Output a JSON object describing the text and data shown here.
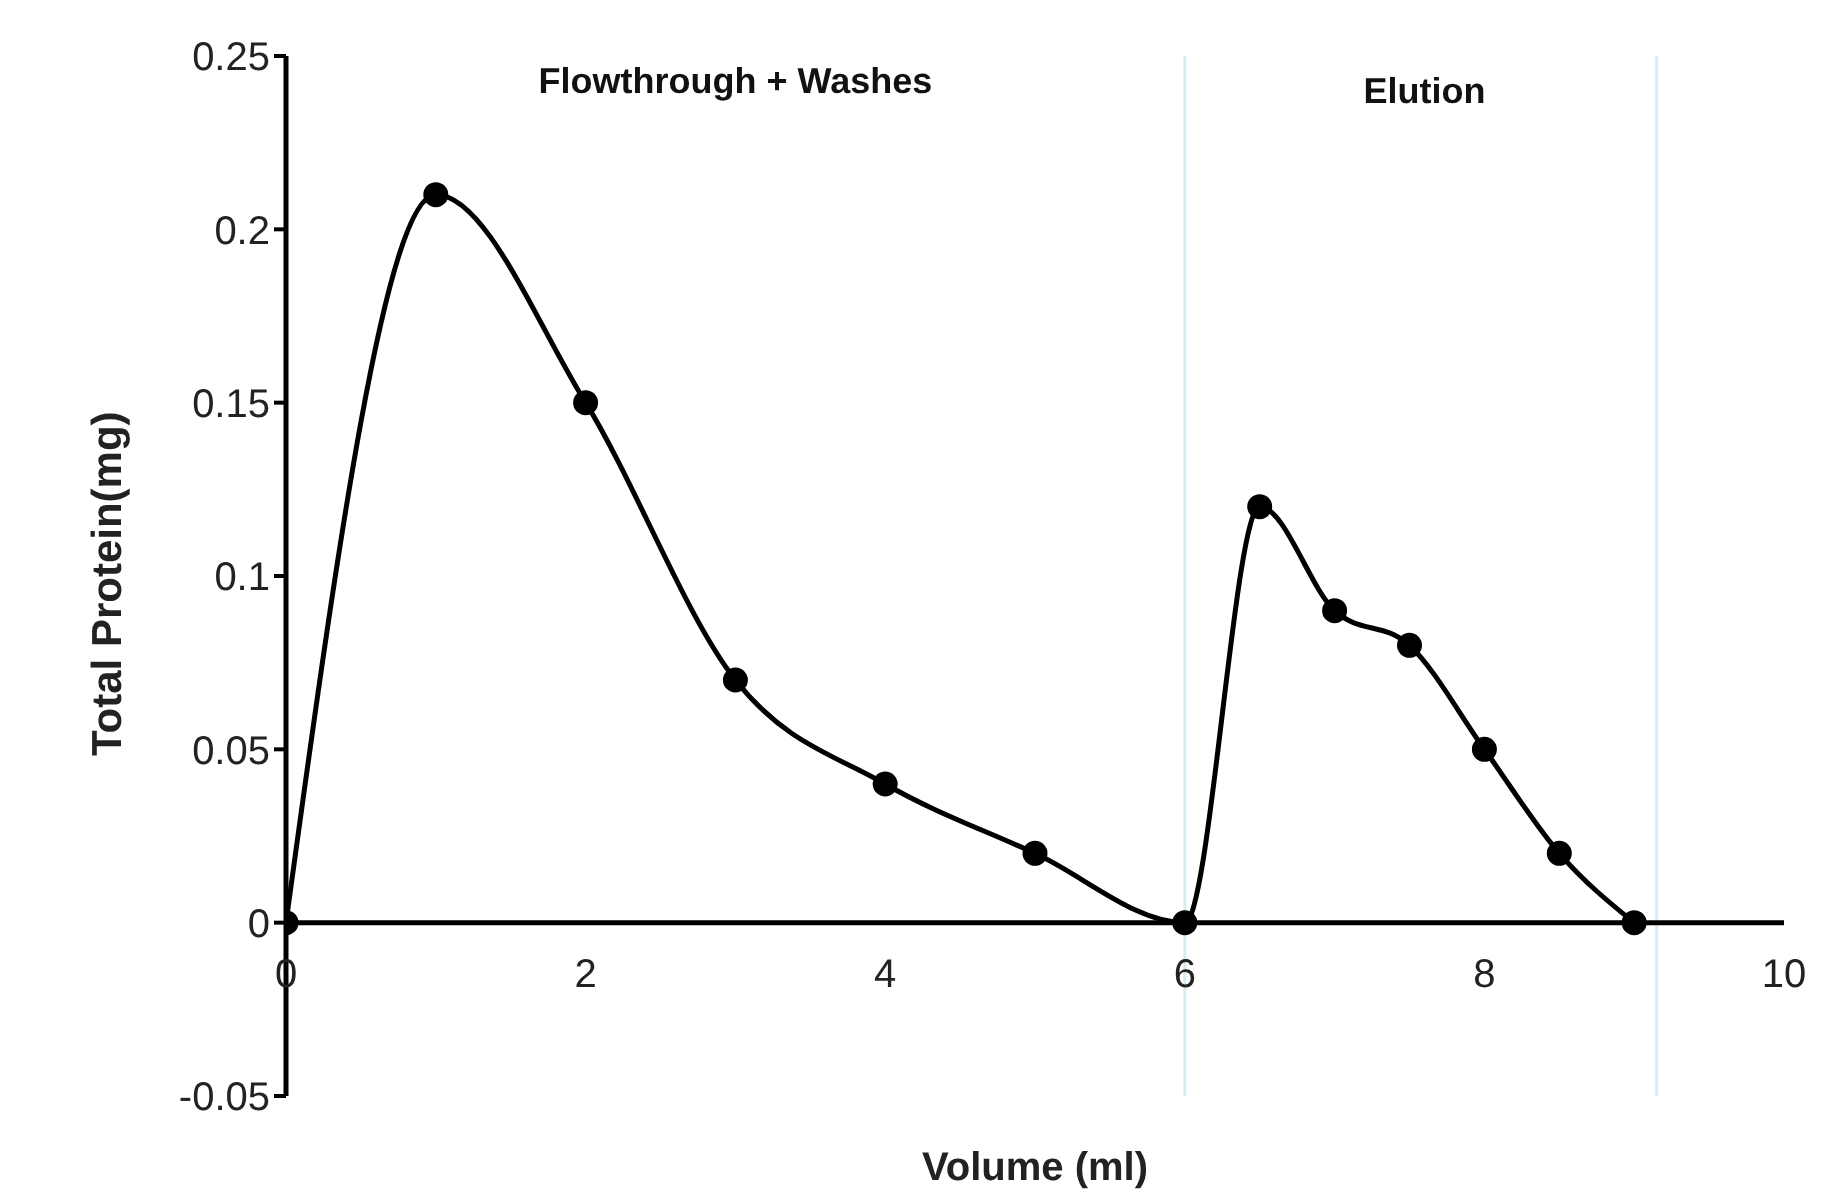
{
  "chart_data": {
    "type": "line",
    "xlabel": "Volume (ml)",
    "ylabel": "Total Protein(mg)",
    "x": [
      0,
      1,
      2,
      3,
      4,
      5,
      6,
      6.5,
      7,
      7.5,
      8,
      8.5,
      9
    ],
    "series": [
      {
        "color": "#000000",
        "values": [
          0,
          0.21,
          0.15,
          0.07,
          0.04,
          0.02,
          0,
          0.12,
          0.09,
          0.08,
          0.05,
          0.02,
          0
        ]
      }
    ],
    "xlim": [
      0,
      10
    ],
    "xticks": [
      0,
      2,
      4,
      6,
      8,
      10
    ],
    "ylim": [
      -0.05,
      0.25
    ],
    "yticks": [
      -0.05,
      0,
      0.05,
      0.1,
      0.15,
      0.2,
      0.25
    ],
    "ref_lines": [
      {
        "axis": "x",
        "value": 6,
        "color": "#d6ebf2"
      },
      {
        "axis": "x",
        "value": 9.15,
        "color": "#d6ebf2"
      }
    ],
    "annotations": [
      "Flowthrough + Washes",
      "Elution"
    ],
    "marker": "circle",
    "grid": false,
    "legend": false
  }
}
